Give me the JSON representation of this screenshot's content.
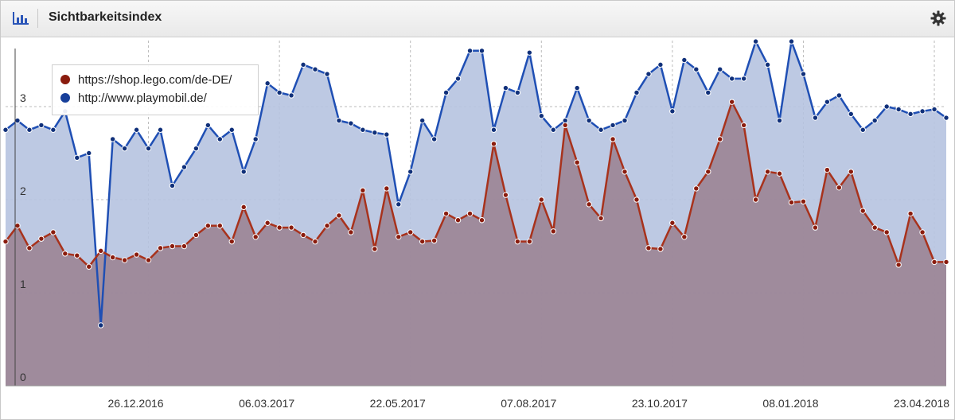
{
  "header": {
    "title": "Sichtbarkeitsindex",
    "icon": "bar-chart-icon",
    "settings_icon": "gear-icon"
  },
  "colors": {
    "lego": "#a8321c",
    "playmobil": "#1f4fb4",
    "lego_fill": "#9c8596",
    "playmobil_fill": "#b6c3e0"
  },
  "chart_data": {
    "type": "area",
    "title": "Sichtbarkeitsindex",
    "xlabel": "",
    "ylabel": "",
    "ylim": [
      0,
      3.5
    ],
    "yticks": [
      0,
      1,
      2,
      3
    ],
    "grid": true,
    "legend_position": "top-left",
    "x_tick_labels": [
      "26.12.2016",
      "06.03.2017",
      "22.05.2017",
      "07.08.2017",
      "23.10.2017",
      "08.01.2018",
      "23.04.2018"
    ],
    "series": [
      {
        "name": "https://shop.lego.com/de-DE/",
        "values": [
          1.55,
          1.72,
          1.48,
          1.58,
          1.65,
          1.42,
          1.4,
          1.28,
          1.45,
          1.38,
          1.35,
          1.41,
          1.35,
          1.48,
          1.5,
          1.5,
          1.62,
          1.72,
          1.72,
          1.55,
          1.92,
          1.6,
          1.75,
          1.7,
          1.7,
          1.62,
          1.55,
          1.72,
          1.83,
          1.65,
          2.1,
          1.47,
          2.12,
          1.6,
          1.65,
          1.55,
          1.56,
          1.85,
          1.78,
          1.85,
          1.78,
          2.6,
          2.05,
          1.55,
          1.55,
          2.0,
          1.66,
          2.8,
          2.4,
          1.95,
          1.8,
          2.65,
          2.3,
          2.0,
          1.48,
          1.47,
          1.75,
          1.6,
          2.12,
          2.3,
          2.65,
          3.05,
          2.8,
          2.0,
          2.3,
          2.28,
          1.97,
          1.98,
          1.7,
          2.32,
          2.13,
          2.3,
          1.88,
          1.7,
          1.65,
          1.3,
          1.85,
          1.65,
          1.33,
          1.33
        ]
      },
      {
        "name": "http://www.playmobil.de/",
        "values": [
          2.75,
          2.85,
          2.75,
          2.8,
          2.75,
          2.95,
          2.45,
          2.5,
          0.65,
          2.65,
          2.55,
          2.75,
          2.55,
          2.75,
          2.15,
          2.35,
          2.55,
          2.8,
          2.65,
          2.75,
          2.3,
          2.65,
          3.25,
          3.15,
          3.12,
          3.45,
          3.4,
          3.35,
          2.85,
          2.82,
          2.75,
          2.72,
          2.7,
          1.95,
          2.3,
          2.85,
          2.65,
          3.15,
          3.3,
          3.6,
          3.6,
          2.75,
          3.2,
          3.15,
          3.58,
          2.9,
          2.75,
          2.85,
          3.2,
          2.85,
          2.75,
          2.8,
          2.85,
          3.15,
          3.35,
          3.45,
          2.95,
          3.5,
          3.4,
          3.15,
          3.4,
          3.3,
          3.3,
          3.7,
          3.45,
          2.85,
          3.7,
          3.35,
          2.88,
          3.05,
          3.12,
          2.92,
          2.75,
          2.85,
          3.0,
          2.97,
          2.92,
          2.95,
          2.97,
          2.88
        ]
      }
    ]
  }
}
